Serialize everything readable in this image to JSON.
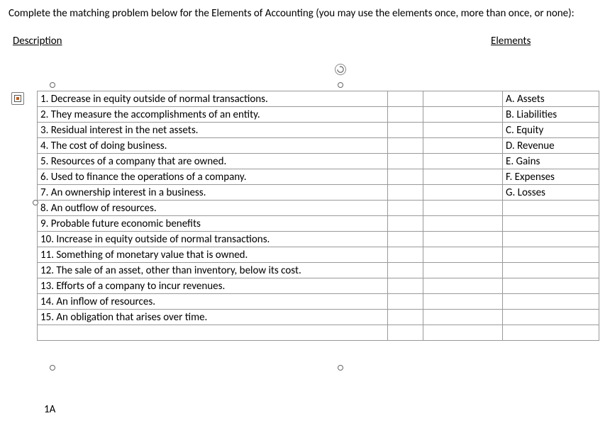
{
  "instructions": "Complete the matching problem below for the Elements of Accounting (you may use the elements once, more than once, or none):",
  "headers": {
    "description": "Description",
    "elements": "Elements"
  },
  "descriptions": [
    "1.  Decrease in equity outside of normal transactions.",
    "2.  They measure the accomplishments of an entity.",
    "3.  Residual interest in the net assets.",
    "4.  The cost of doing business.",
    "5.  Resources of a company that are owned.",
    "6.  Used to finance the operations of a company.",
    "7.  An ownership interest in a business.",
    "8.  An outflow of resources.",
    "9.  Probable future economic benefits",
    "10.  Increase in equity outside of normal transactions.",
    "11.  Something of monetary value that is owned.",
    "12.  The sale of an asset, other than inventory, below its cost.",
    "13.  Efforts of a company to incur revenues.",
    "14.  An inflow of resources.",
    "15.  An obligation that arises over time."
  ],
  "elements": [
    "A.  Assets",
    "B.  Liabilities",
    "C.  Equity",
    "D.  Revenue",
    "E.  Gains",
    "F.  Expenses",
    "G.  Losses"
  ],
  "footer": "1A",
  "colors": {
    "border": "#999999",
    "text": "#000000",
    "handle_border": "#666666",
    "icon_accent": "#c55a11"
  }
}
